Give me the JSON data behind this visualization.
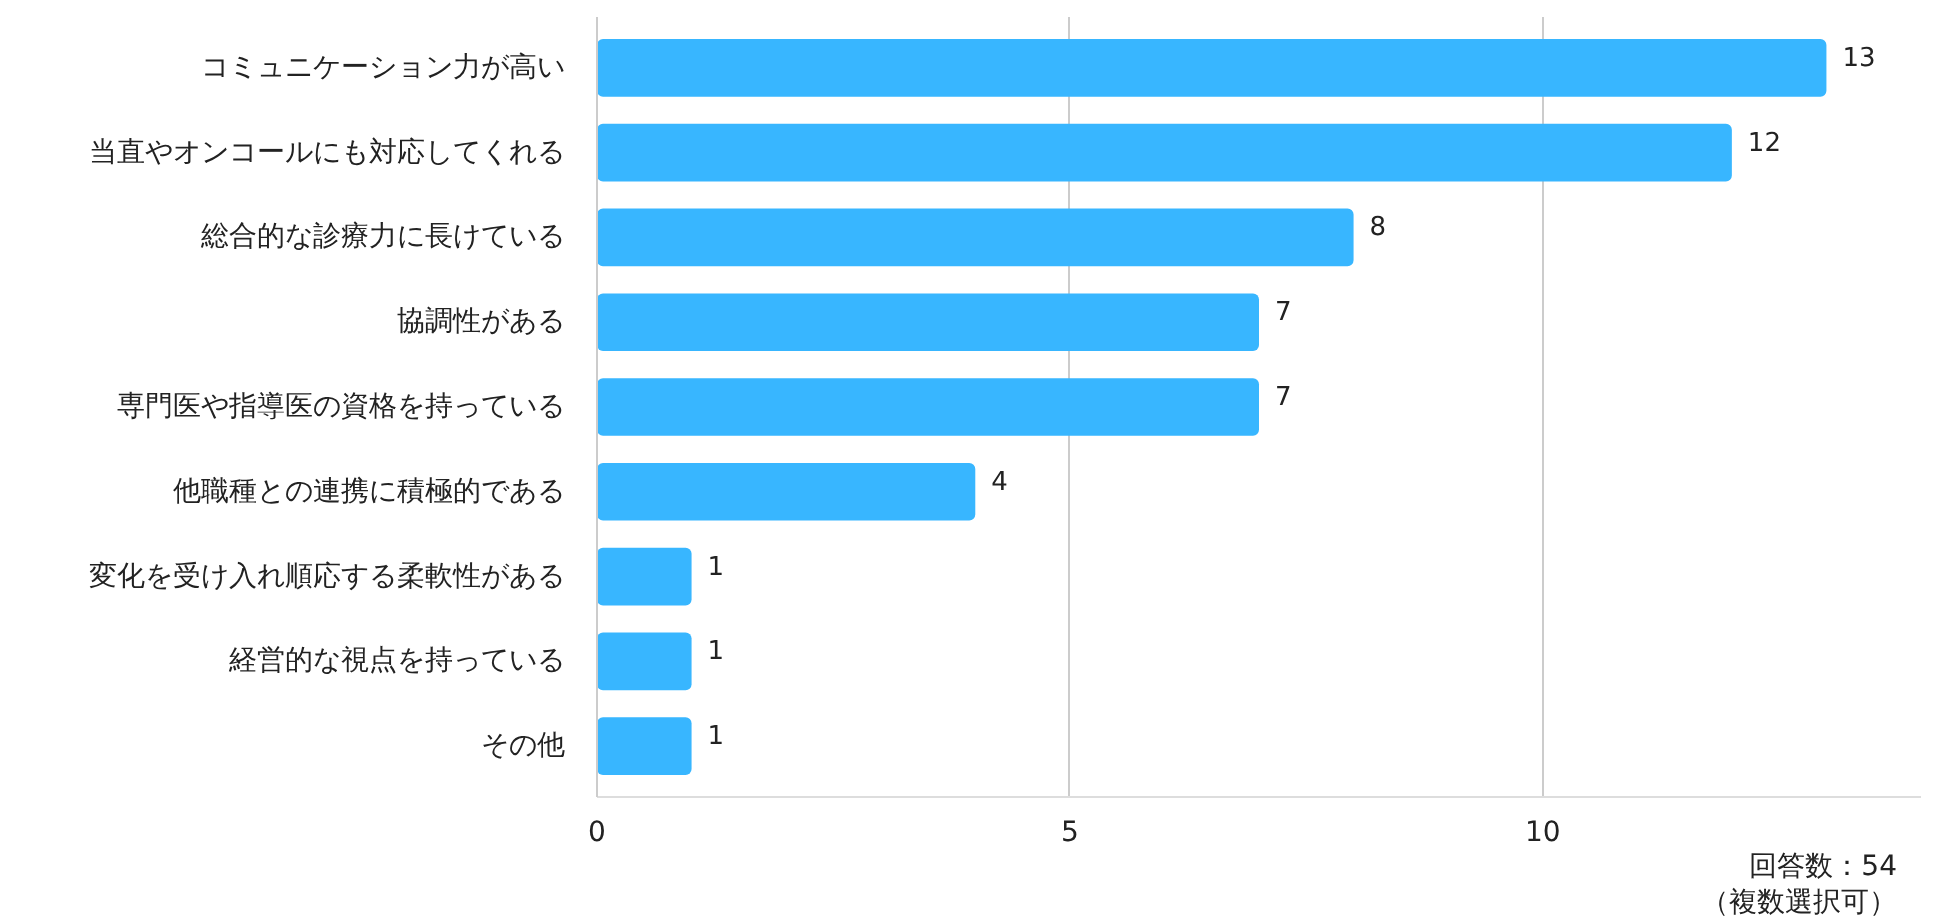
{
  "chart_data": {
    "type": "bar",
    "orientation": "horizontal",
    "categories": [
      "コミュニケーション力が高い",
      "当直やオンコールにも対応してくれる",
      "総合的な診療力に長けている",
      "協調性がある",
      "専門医や指導医の資格を持っている",
      "他職種との連携に積極的である",
      "変化を受け入れ順応する柔軟性がある",
      "経営的な視点を持っている",
      "その他"
    ],
    "values": [
      13,
      12,
      8,
      7,
      7,
      4,
      1,
      1,
      1
    ],
    "color": "#38b6ff",
    "xlim": [
      0,
      14
    ],
    "xticks": [
      0,
      5,
      10
    ],
    "grid": "x",
    "data_labels": true,
    "annotations": [
      "回答数：54",
      "（複数選択可）"
    ]
  }
}
